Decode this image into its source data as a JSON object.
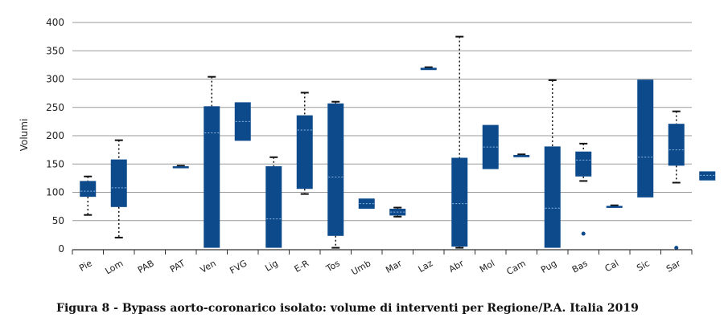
{
  "caption": "Figura 8 - Bypass aorto-coronarico isolato: volume di interventi per Regione/P.A.  Italia 2019",
  "chart_data": {
    "type": "boxplot",
    "title": "",
    "xlabel": "",
    "ylabel": "Volumi",
    "ylim": [
      0,
      400
    ],
    "yticks": [
      "0",
      "50",
      "100",
      "150",
      "200",
      "250",
      "300",
      "350",
      "400"
    ],
    "grid": true,
    "box_color": "#0d4a8c",
    "median_color": "#8fb6e0",
    "categories": [
      "Pie",
      "Lom",
      "PAB",
      "PAT",
      "Ven",
      "FVG",
      "Lig",
      "E-R",
      "Tos",
      "Umb",
      "Mar",
      "Laz",
      "Abr",
      "Mol",
      "Cam",
      "Pug",
      "Bas",
      "Cal",
      "Sic",
      "Sar"
    ],
    "boxes": [
      {
        "min": 60,
        "q1": 92,
        "median": 102,
        "q3": 120,
        "max": 128,
        "outliers": []
      },
      {
        "min": 20,
        "q1": 74,
        "median": 108,
        "q3": 158,
        "max": 192,
        "outliers": []
      },
      null,
      {
        "min": 143,
        "q1": 143,
        "median": 144,
        "q3": 146,
        "max": 147,
        "outliers": []
      },
      {
        "min": 2,
        "q1": 2,
        "median": 205,
        "q3": 252,
        "max": 304,
        "outliers": []
      },
      {
        "min": 191,
        "q1": 191,
        "median": 225,
        "q3": 259,
        "max": 259,
        "outliers": []
      },
      {
        "min": 2,
        "q1": 2,
        "median": 53,
        "q3": 146,
        "max": 162,
        "outliers": []
      },
      {
        "min": 97,
        "q1": 106,
        "median": 210,
        "q3": 236,
        "max": 276,
        "outliers": []
      },
      {
        "min": 2,
        "q1": 23,
        "median": 127,
        "q3": 257,
        "max": 260,
        "outliers": []
      },
      {
        "min": 71,
        "q1": 71,
        "median": 80,
        "q3": 89,
        "max": 89,
        "outliers": []
      },
      {
        "min": 57,
        "q1": 59,
        "median": 65,
        "q3": 71,
        "max": 73,
        "outliers": []
      },
      {
        "min": 316,
        "q1": 316,
        "median": 318,
        "q3": 320,
        "max": 321,
        "outliers": []
      },
      {
        "min": 2,
        "q1": 4,
        "median": 80,
        "q3": 161,
        "max": 375,
        "outliers": []
      },
      {
        "min": 141,
        "q1": 141,
        "median": 180,
        "q3": 219,
        "max": 219,
        "outliers": []
      },
      {
        "min": 162,
        "q1": 162,
        "median": 164,
        "q3": 166,
        "max": 167,
        "outliers": []
      },
      {
        "min": 2,
        "q1": 2,
        "median": 72,
        "q3": 181,
        "max": 298,
        "outliers": []
      },
      {
        "min": 120,
        "q1": 128,
        "median": 157,
        "q3": 172,
        "max": 186,
        "outliers": [
          27
        ]
      },
      {
        "min": 73,
        "q1": 73,
        "median": 75,
        "q3": 76,
        "max": 77,
        "outliers": []
      },
      {
        "min": 91,
        "q1": 91,
        "median": 162,
        "q3": 299,
        "max": 299,
        "outliers": []
      },
      {
        "min": 117,
        "q1": 147,
        "median": 175,
        "q3": 221,
        "max": 243,
        "outliers": [
          2
        ]
      },
      {
        "min": 121,
        "q1": 121,
        "median": 130,
        "q3": 137,
        "max": 137,
        "outliers": []
      }
    ]
  }
}
